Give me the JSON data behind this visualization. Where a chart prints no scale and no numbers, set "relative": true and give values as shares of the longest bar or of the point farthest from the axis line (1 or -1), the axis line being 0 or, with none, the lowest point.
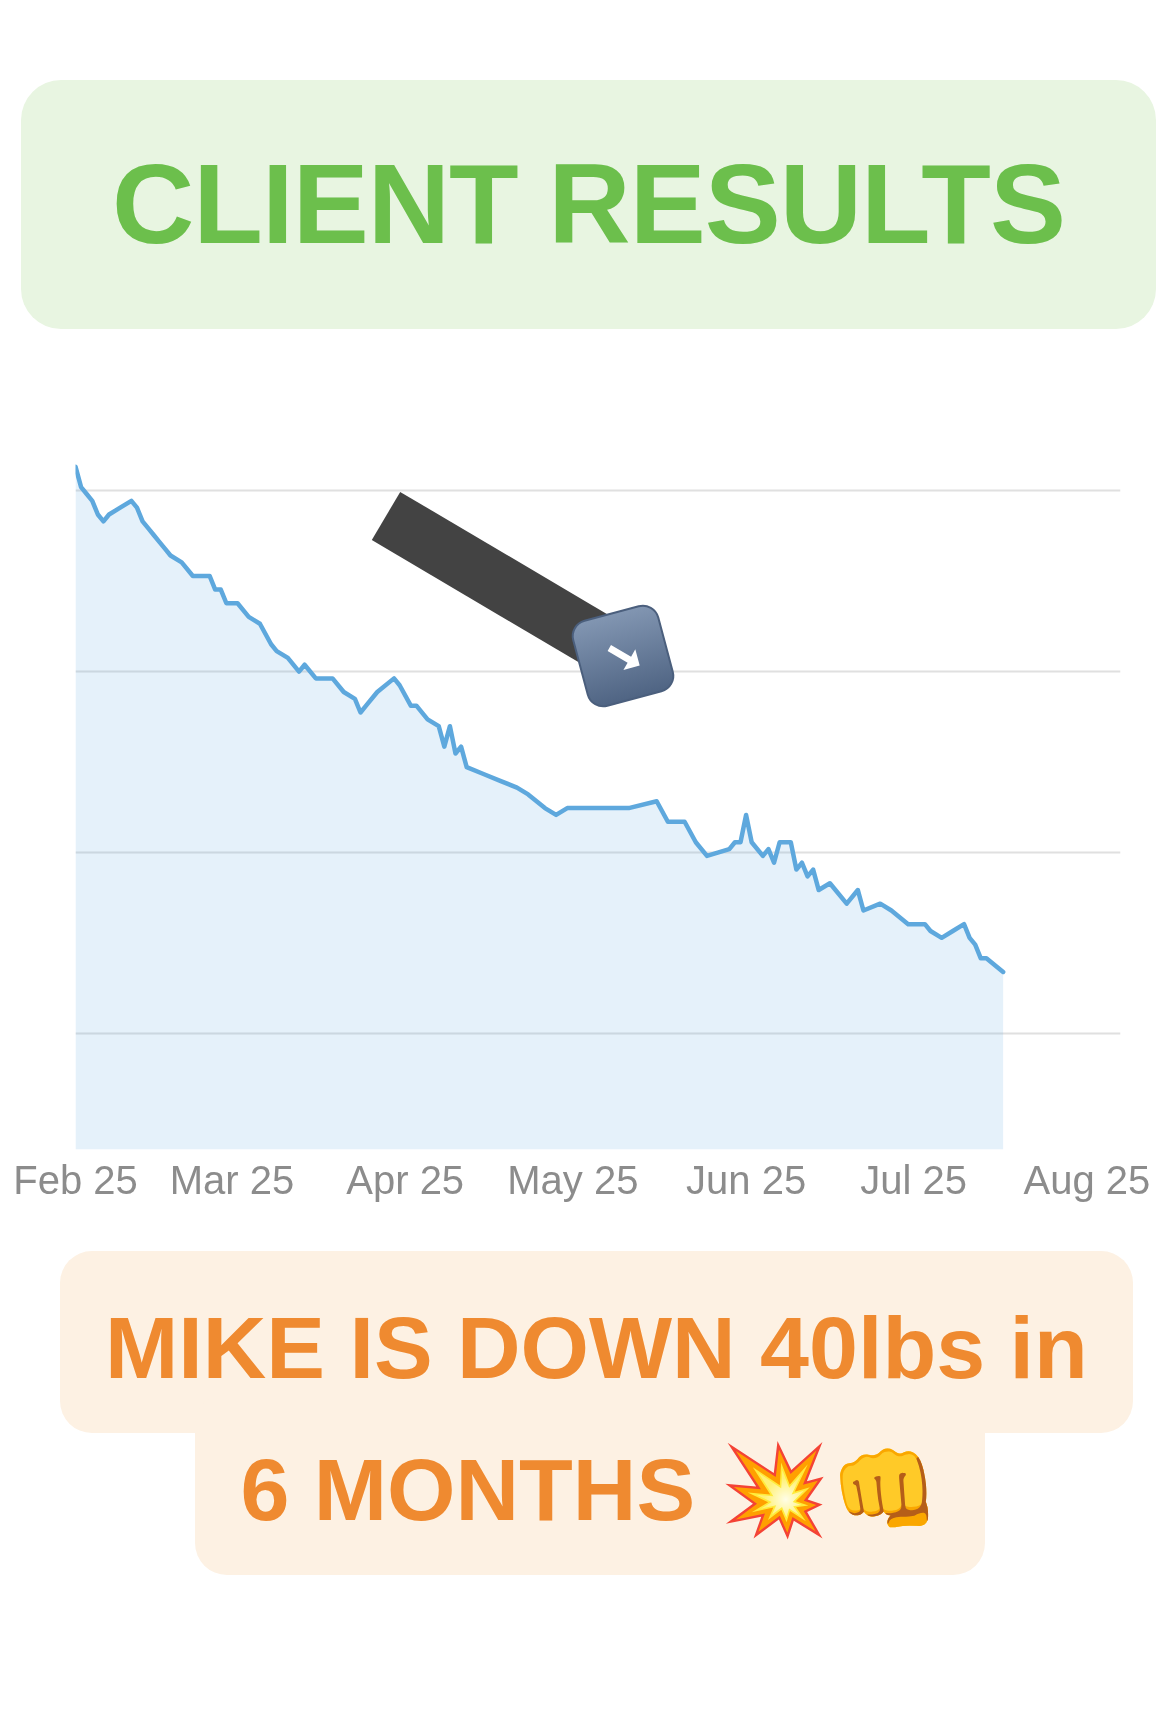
{
  "chart_data": {
    "type": "area",
    "title": "CLIENT RESULTS",
    "annotations": [
      "MIKE IS DOWN 40lbs in 6 MONTHS 💥👊"
    ],
    "relative": true,
    "x": [
      "2025-02-01",
      "2025-02-02",
      "2025-02-03",
      "2025-02-04",
      "2025-02-05",
      "2025-02-06",
      "2025-02-07",
      "2025-02-09",
      "2025-02-11",
      "2025-02-12",
      "2025-02-13",
      "2025-02-14",
      "2025-02-15",
      "2025-02-16",
      "2025-02-17",
      "2025-02-18",
      "2025-02-20",
      "2025-02-22",
      "2025-02-25",
      "2025-02-26",
      "2025-02-27",
      "2025-02-28",
      "2025-03-02",
      "2025-03-04",
      "2025-03-06",
      "2025-03-08",
      "2025-03-09",
      "2025-03-11",
      "2025-03-13",
      "2025-03-14",
      "2025-03-16",
      "2025-03-19",
      "2025-03-21",
      "2025-03-23",
      "2025-03-24",
      "2025-03-25",
      "2025-03-27",
      "2025-03-30",
      "2025-03-31",
      "2025-04-02",
      "2025-04-03",
      "2025-04-05",
      "2025-04-07",
      "2025-04-08",
      "2025-04-09",
      "2025-04-10",
      "2025-04-11",
      "2025-04-12",
      "2025-04-15",
      "2025-04-18",
      "2025-04-21",
      "2025-04-23",
      "2025-04-26",
      "2025-04-28",
      "2025-04-30",
      "2025-05-05",
      "2025-05-11",
      "2025-05-16",
      "2025-05-18",
      "2025-05-19",
      "2025-05-21",
      "2025-05-23",
      "2025-05-25",
      "2025-05-29",
      "2025-05-30",
      "2025-05-31",
      "2025-06-01",
      "2025-06-02",
      "2025-06-04",
      "2025-06-05",
      "2025-06-06",
      "2025-06-07",
      "2025-06-09",
      "2025-06-10",
      "2025-06-11",
      "2025-06-12",
      "2025-06-13",
      "2025-06-14",
      "2025-06-16",
      "2025-06-19",
      "2025-06-21",
      "2025-06-22",
      "2025-06-25",
      "2025-06-27",
      "2025-06-30",
      "2025-07-02",
      "2025-07-03",
      "2025-07-04",
      "2025-07-06",
      "2025-07-08",
      "2025-07-10",
      "2025-07-11",
      "2025-07-12",
      "2025-07-13",
      "2025-07-14",
      "2025-07-17"
    ],
    "values": [
      1.0,
      0.97,
      0.96,
      0.95,
      0.93,
      0.92,
      0.93,
      0.94,
      0.95,
      0.94,
      0.92,
      0.91,
      0.9,
      0.89,
      0.88,
      0.87,
      0.86,
      0.84,
      0.84,
      0.82,
      0.82,
      0.8,
      0.8,
      0.78,
      0.77,
      0.74,
      0.73,
      0.72,
      0.7,
      0.71,
      0.69,
      0.69,
      0.67,
      0.66,
      0.64,
      0.65,
      0.67,
      0.69,
      0.68,
      0.65,
      0.65,
      0.63,
      0.62,
      0.59,
      0.62,
      0.58,
      0.59,
      0.56,
      0.55,
      0.54,
      0.53,
      0.52,
      0.5,
      0.49,
      0.5,
      0.5,
      0.5,
      0.51,
      0.48,
      0.48,
      0.48,
      0.45,
      0.43,
      0.44,
      0.45,
      0.45,
      0.49,
      0.45,
      0.43,
      0.44,
      0.42,
      0.45,
      0.45,
      0.41,
      0.42,
      0.4,
      0.41,
      0.38,
      0.39,
      0.36,
      0.38,
      0.35,
      0.36,
      0.35,
      0.33,
      0.33,
      0.33,
      0.32,
      0.31,
      0.32,
      0.33,
      0.31,
      0.3,
      0.28,
      0.28,
      0.26
    ],
    "color": "#5ea8dd",
    "line_style": "solid",
    "xlim": [
      "2025-02-01",
      "2025-08-07"
    ],
    "xticks": [
      {
        "value": "2025-02-01",
        "label": "Feb 25"
      },
      {
        "value": "2025-03-01",
        "label": "Mar 25"
      },
      {
        "value": "2025-04-01",
        "label": "Apr 25"
      },
      {
        "value": "2025-05-01",
        "label": "May 25"
      },
      {
        "value": "2025-06-01",
        "label": "Jun 25"
      },
      {
        "value": "2025-07-01",
        "label": "Jul 25"
      },
      {
        "value": "2025-08-01",
        "label": "Aug 25"
      }
    ],
    "grid": "y"
  }
}
